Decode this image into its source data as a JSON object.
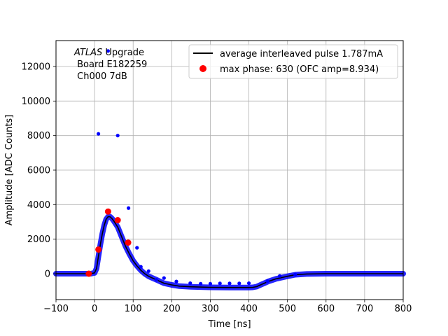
{
  "chart_data": {
    "type": "scatter",
    "xlabel": "Time [ns]",
    "ylabel": "Amplitude [ADC Counts]",
    "xlim": [
      -100,
      800
    ],
    "ylim": [
      -1500,
      13500
    ],
    "xticks": [
      -100,
      0,
      100,
      200,
      300,
      400,
      500,
      600,
      700,
      800
    ],
    "yticks": [
      0,
      2000,
      4000,
      6000,
      8000,
      10000,
      12000
    ],
    "grid": true,
    "legend_position": "top-right",
    "annotation": {
      "italic": "ATLAS",
      "rest": " Upgrade",
      "line2": " Board E182259",
      "line3": " Ch000 7dB"
    },
    "legend": [
      {
        "label": "average interleaved pulse 1.787mA",
        "marker": "line",
        "color": "#000000"
      },
      {
        "label": "max phase: 630 (OFC amp=8.934)",
        "marker": "circle",
        "color": "#ff0000"
      }
    ],
    "series": [
      {
        "name": "average interleaved pulse 1.787mA",
        "kind": "line",
        "color": "#000000",
        "x": [
          -100,
          -20,
          -10,
          0,
          5,
          10,
          15,
          20,
          25,
          30,
          35,
          40,
          45,
          50,
          60,
          70,
          80,
          90,
          100,
          110,
          120,
          130,
          140,
          150,
          160,
          170,
          180,
          200,
          220,
          250,
          300,
          350,
          400,
          410,
          420,
          430,
          440,
          450,
          470,
          500,
          520,
          550,
          600,
          650,
          700,
          750,
          800
        ],
        "y": [
          0,
          0,
          0,
          50,
          300,
          1000,
          1700,
          2300,
          2800,
          3150,
          3300,
          3300,
          3200,
          3050,
          2700,
          2150,
          1600,
          1150,
          750,
          450,
          200,
          0,
          -150,
          -250,
          -350,
          -450,
          -550,
          -650,
          -720,
          -760,
          -790,
          -800,
          -800,
          -790,
          -750,
          -650,
          -550,
          -450,
          -300,
          -150,
          -60,
          -15,
          0,
          0,
          0,
          0,
          0
        ]
      },
      {
        "name": "",
        "kind": "outliers",
        "color": "#0000ff",
        "x": [
          10,
          35,
          60,
          88,
          110,
          120,
          140,
          160,
          180,
          212,
          248,
          275,
          300,
          325,
          350,
          375,
          400,
          448,
          480,
          520
        ],
        "y": [
          8100,
          12900,
          8000,
          3800,
          1500,
          400,
          150,
          -350,
          -250,
          -450,
          -550,
          -580,
          -580,
          -560,
          -560,
          -560,
          -550,
          -430,
          -130,
          -50
        ]
      },
      {
        "name": "max phase: 630 (OFC amp=8.934)",
        "kind": "points",
        "color": "#ff0000",
        "x": [
          -15,
          10,
          35,
          60,
          87
        ],
        "y": [
          0,
          1400,
          3600,
          3100,
          1800
        ]
      }
    ]
  }
}
